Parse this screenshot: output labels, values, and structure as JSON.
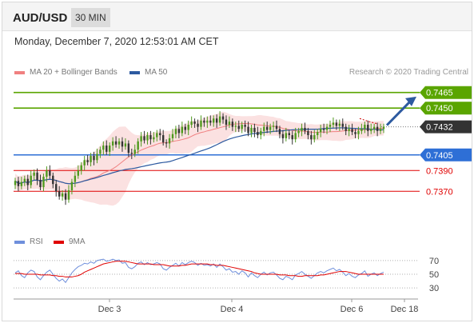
{
  "header": {
    "pair": "AUD/USD",
    "timeframe": "30 MIN"
  },
  "timestamp": "Monday, December 7, 2020 12:53:01 AM CET",
  "legend": {
    "bollinger": {
      "label": "MA 20 + Bollinger Bands",
      "color": "#f08080"
    },
    "ma50": {
      "label": "MA 50",
      "color": "#2d5aa0"
    }
  },
  "credit": "Research © 2020 Trading Central",
  "rsi_legend": {
    "rsi": {
      "label": "RSI",
      "color": "#6f8fdc"
    },
    "ma9": {
      "label": "9MA",
      "color": "#e00000"
    }
  },
  "chart_data": [
    {
      "type": "candlestick",
      "ylim": [
        0.7351,
        0.7474
      ],
      "current_price": 0.7432,
      "levels": [
        {
          "value": 0.7465,
          "label": "0.7465",
          "color": "#5aa500",
          "kind": "resistance"
        },
        {
          "value": 0.745,
          "label": "0.7450",
          "color": "#5aa500",
          "kind": "resistance"
        },
        {
          "value": 0.7432,
          "label": "0.7432",
          "color": "#333333",
          "kind": "last"
        },
        {
          "value": 0.7405,
          "label": "0.7405",
          "color": "#2e6fd6",
          "kind": "pivot"
        },
        {
          "value": 0.739,
          "label": "0.7390",
          "color": "#e00000",
          "kind": "support"
        },
        {
          "value": 0.737,
          "label": "0.7370",
          "color": "#e00000",
          "kind": "support"
        }
      ],
      "x_ticks": [
        "Dec 3",
        "Dec 4",
        "Dec 6",
        "Dec 18"
      ],
      "closes": [
        0.738,
        0.7375,
        0.7379,
        0.7382,
        0.7376,
        0.7385,
        0.7388,
        0.7381,
        0.7374,
        0.7384,
        0.739,
        0.7385,
        0.7377,
        0.737,
        0.7365,
        0.7368,
        0.7362,
        0.7371,
        0.7379,
        0.7385,
        0.739,
        0.7395,
        0.74,
        0.7398,
        0.7404,
        0.74,
        0.7406,
        0.741,
        0.7414,
        0.7408,
        0.7414,
        0.7418,
        0.7415,
        0.7418,
        0.7413,
        0.7416,
        0.7407,
        0.7406,
        0.741,
        0.7418,
        0.7423,
        0.7419,
        0.7424,
        0.742,
        0.7422,
        0.7426,
        0.7424,
        0.7417,
        0.7416,
        0.7421,
        0.7425,
        0.743,
        0.7426,
        0.7432,
        0.7429,
        0.7434,
        0.7437,
        0.7435,
        0.7432,
        0.7438,
        0.7436,
        0.7438,
        0.7436,
        0.744,
        0.7436,
        0.7442,
        0.7439,
        0.7434,
        0.7437,
        0.7432,
        0.7433,
        0.743,
        0.7434,
        0.7432,
        0.7426,
        0.7431,
        0.7427,
        0.7424,
        0.7428,
        0.7432,
        0.7429,
        0.7432,
        0.7433,
        0.743,
        0.7425,
        0.7421,
        0.7426,
        0.7424,
        0.742,
        0.7426,
        0.7428,
        0.7431,
        0.7428,
        0.7424,
        0.742,
        0.7424,
        0.7427,
        0.743,
        0.7429,
        0.7432,
        0.7434,
        0.7436,
        0.7433,
        0.7435,
        0.7432,
        0.7428,
        0.743,
        0.7427,
        0.7425,
        0.7428,
        0.743,
        0.7434,
        0.7428,
        0.743,
        0.7432,
        0.7428,
        0.743,
        0.7432
      ]
    },
    {
      "type": "line",
      "name": "RSI panel",
      "ylim": [
        22,
        78
      ],
      "y_ticks": [
        70,
        50,
        30
      ],
      "rsi": [
        52,
        55,
        48,
        45,
        52,
        56,
        54,
        46,
        42,
        48,
        53,
        56,
        50,
        44,
        40,
        43,
        38,
        45,
        52,
        57,
        61,
        63,
        66,
        65,
        68,
        66,
        70,
        71,
        72,
        69,
        70,
        72,
        70,
        71,
        66,
        67,
        60,
        58,
        61,
        66,
        68,
        64,
        67,
        64,
        65,
        67,
        65,
        58,
        56,
        60,
        63,
        66,
        62,
        67,
        64,
        67,
        69,
        67,
        63,
        66,
        63,
        64,
        62,
        65,
        60,
        65,
        61,
        56,
        58,
        53,
        54,
        50,
        55,
        52,
        46,
        52,
        48,
        45,
        50,
        53,
        49,
        52,
        53,
        49,
        44,
        42,
        47,
        45,
        42,
        49,
        51,
        54,
        50,
        47,
        44,
        48,
        52,
        54,
        52,
        55,
        57,
        59,
        55,
        57,
        53,
        48,
        51,
        47,
        45,
        49,
        51,
        55,
        47,
        50,
        52,
        48,
        51,
        53
      ],
      "ma9": [
        51,
        51,
        51,
        50,
        50,
        50,
        50,
        50,
        49,
        49,
        49,
        49,
        48,
        48,
        47,
        47,
        46,
        46,
        46,
        47,
        48,
        50,
        53,
        55,
        57,
        59,
        61,
        63,
        65,
        66,
        67,
        68,
        69,
        69,
        69,
        69,
        68,
        67,
        66,
        65,
        65,
        65,
        65,
        65,
        64,
        64,
        64,
        64,
        63,
        62,
        62,
        62,
        62,
        63,
        63,
        64,
        65,
        65,
        65,
        65,
        65,
        65,
        64,
        64,
        63,
        63,
        63,
        62,
        61,
        60,
        59,
        58,
        57,
        56,
        55,
        54,
        52,
        51,
        50,
        50,
        50,
        50,
        50,
        50,
        49,
        49,
        49,
        48,
        48,
        48,
        47,
        47,
        48,
        48,
        48,
        48,
        48,
        49,
        49,
        50,
        51,
        52,
        53,
        54,
        54,
        54,
        53,
        52,
        51,
        50,
        50,
        50,
        50,
        50,
        50,
        50,
        50,
        50
      ]
    }
  ]
}
